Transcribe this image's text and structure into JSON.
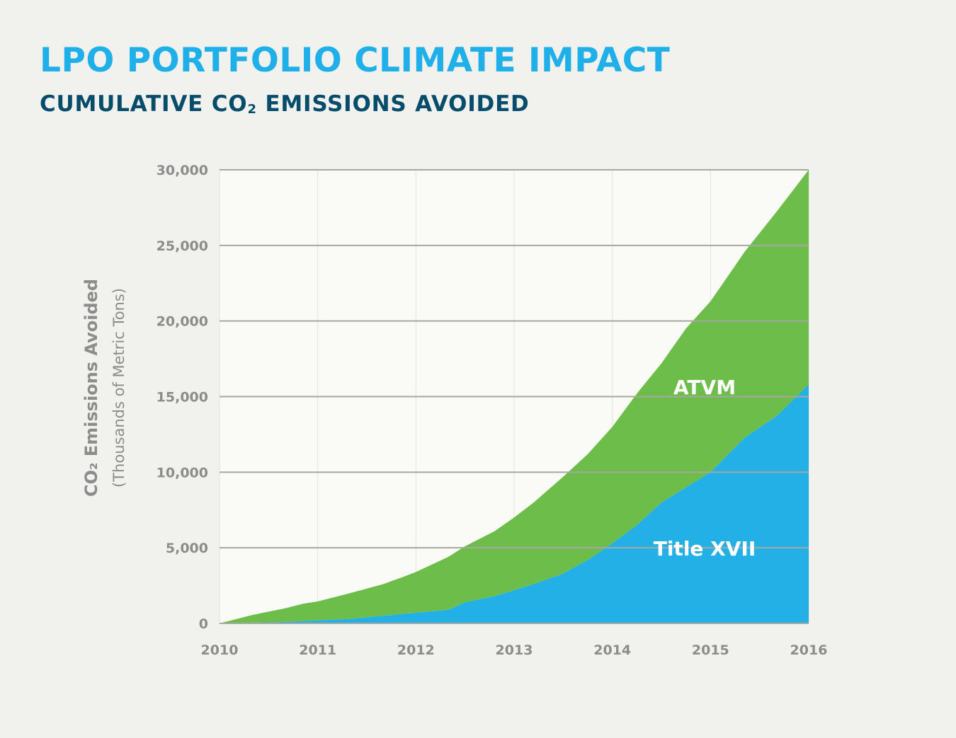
{
  "title": "LPO PORTFOLIO CLIMATE IMPACT",
  "subtitle": {
    "prefix": "CUMULATIVE CO",
    "subscript": "2",
    "suffix": " EMISSIONS AVOIDED"
  },
  "chart_data": {
    "type": "area",
    "stacked": true,
    "ylabel": {
      "main": "CO₂ Emissions Avoided",
      "units": "(Thousands of Metric Tons)"
    },
    "xlim": [
      2010,
      2016
    ],
    "ylim": [
      0,
      30000
    ],
    "x_ticks": [
      "2010",
      "2011",
      "2012",
      "2013",
      "2014",
      "2015",
      "2016"
    ],
    "y_ticks": [
      {
        "value": 0,
        "label": "0"
      },
      {
        "value": 5000,
        "label": "5,000"
      },
      {
        "value": 10000,
        "label": "10,000"
      },
      {
        "value": 15000,
        "label": "15,000"
      },
      {
        "value": 20000,
        "label": "20,000"
      },
      {
        "value": 25000,
        "label": "25,000"
      },
      {
        "value": 30000,
        "label": "30,000"
      }
    ],
    "grid": true,
    "x": [
      2010.0,
      2010.33,
      2010.67,
      2010.85,
      2011.0,
      2011.33,
      2011.67,
      2011.9,
      2012.0,
      2012.33,
      2012.5,
      2012.8,
      2013.0,
      2013.2,
      2013.5,
      2013.75,
      2014.0,
      2014.25,
      2014.5,
      2014.75,
      2015.0,
      2015.35,
      2015.67,
      2016.0
    ],
    "series": [
      {
        "name": "Title XVII",
        "color": "#23b0e6",
        "values": [
          0,
          50,
          100,
          150,
          200,
          300,
          500,
          650,
          700,
          900,
          1400,
          1800,
          2200,
          2600,
          3300,
          4200,
          5300,
          6500,
          8000,
          9000,
          10000,
          12300,
          13700,
          15800
        ]
      },
      {
        "name": "ATVM",
        "color": "#6dbd4b",
        "values": [
          0,
          500,
          900,
          1150,
          1250,
          1700,
          2100,
          2500,
          2700,
          3500,
          3700,
          4300,
          4800,
          5400,
          6400,
          7000,
          7700,
          8700,
          9200,
          10500,
          11300,
          12300,
          13500,
          14200
        ]
      }
    ]
  }
}
